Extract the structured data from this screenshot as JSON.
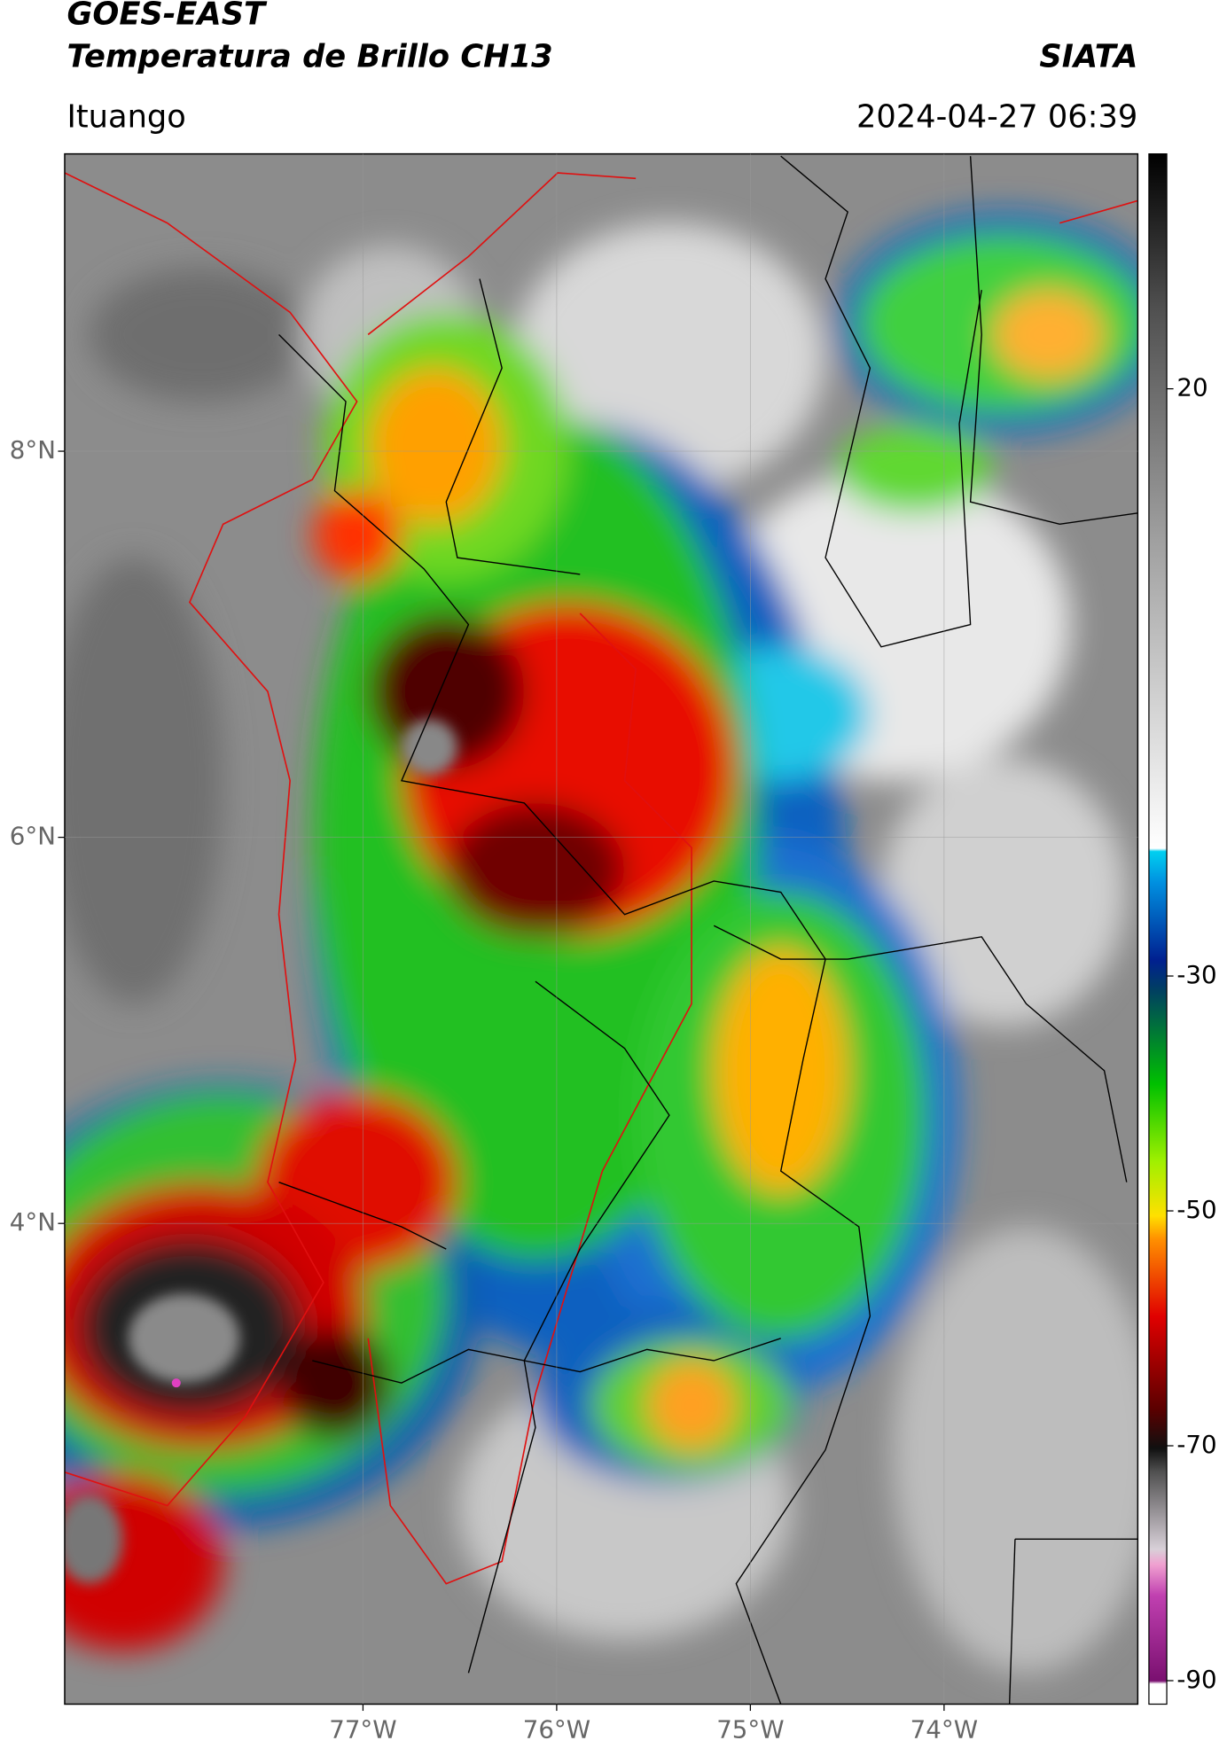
{
  "header": {
    "title_line1": "GOES-EAST",
    "title_line2": "Temperatura de Brillo CH13",
    "source": "SIATA",
    "location": "Ituango",
    "datetime": "2024-04-27 06:39"
  },
  "map": {
    "lat_range": [
      1.51,
      9.54
    ],
    "lon_range": [
      -78.54,
      -73.0
    ],
    "lat_ticks": [
      {
        "value": 8,
        "label": "8°N"
      },
      {
        "value": 6,
        "label": "6°N"
      },
      {
        "value": 4,
        "label": "4°N"
      }
    ],
    "lon_ticks": [
      {
        "value": -77,
        "label": "77°W"
      },
      {
        "value": -76,
        "label": "76°W"
      },
      {
        "value": -75,
        "label": "75°W"
      },
      {
        "value": -74,
        "label": "74°W"
      }
    ]
  },
  "colorbar": {
    "range": [
      -92,
      40
    ],
    "ticks": [
      20,
      -30,
      -50,
      -70,
      -90
    ]
  }
}
